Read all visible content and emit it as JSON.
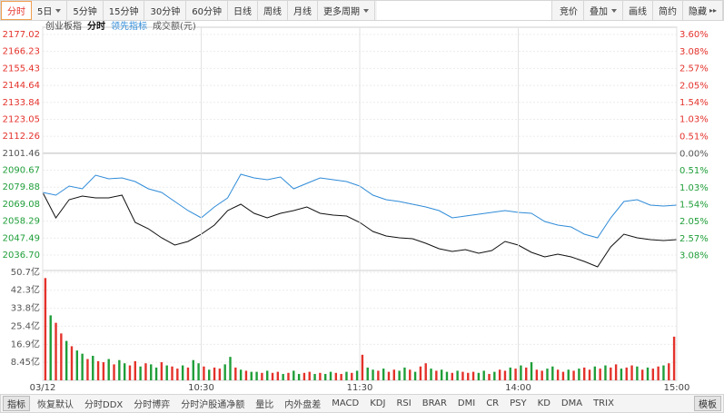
{
  "toolbar": {
    "left": [
      {
        "label": "分时",
        "active": true
      },
      {
        "label": "5日",
        "menu": true
      },
      {
        "label": "5分钟"
      },
      {
        "label": "15分钟"
      },
      {
        "label": "30分钟"
      },
      {
        "label": "60分钟"
      },
      {
        "label": "日线"
      },
      {
        "label": "周线"
      },
      {
        "label": "月线"
      },
      {
        "label": "更多周期",
        "menu": true
      }
    ],
    "right": [
      {
        "label": "竞价"
      },
      {
        "label": "叠加",
        "menu": true
      },
      {
        "label": "画线"
      },
      {
        "label": "简约"
      },
      {
        "label": "隐藏",
        "hide": true
      }
    ]
  },
  "bottom_bar": {
    "label": "指标",
    "tabs": [
      "恢复默认",
      "分时DDX",
      "分时博弈",
      "分时沪股通净额",
      "量比",
      "内外盘差",
      "MACD",
      "KDJ",
      "RSI",
      "BRAR",
      "DMI",
      "CR",
      "PSY",
      "KD",
      "DMA",
      "TRIX"
    ],
    "end": "模板"
  },
  "chart_data": [
    {
      "type": "line",
      "title": "创业板指",
      "series": [
        {
          "name": "分时",
          "color": "#111111",
          "values": [
            2076.53,
            2060.36,
            2071.91,
            2074.22,
            2073.07,
            2073.07,
            2074.8,
            2057.48,
            2053.43,
            2047.66,
            2043.04,
            2045.35,
            2049.97,
            2055.74,
            2064.98,
            2069.03,
            2063.25,
            2060.36,
            2063.25,
            2064.98,
            2067.29,
            2063.25,
            2062.1,
            2061.52,
            2057.48,
            2051.7,
            2048.81,
            2047.66,
            2047.08,
            2044.19,
            2040.73,
            2039.0,
            2040.15,
            2037.84,
            2039.57,
            2045.35,
            2043.04,
            2038.42,
            2035.53,
            2037.26,
            2035.53,
            2032.64,
            2029.18,
            2041.88,
            2049.97,
            2047.66,
            2046.5,
            2045.93,
            2046.5
          ]
        },
        {
          "name": "领先指标",
          "color": "#2f8bd8",
          "values": [
            2076.53,
            2074.8,
            2080.58,
            2078.84,
            2087.51,
            2085.2,
            2085.77,
            2083.46,
            2078.84,
            2076.53,
            2070.76,
            2064.98,
            2060.36,
            2067.29,
            2073.07,
            2088.08,
            2085.77,
            2084.62,
            2086.35,
            2078.84,
            2082.31,
            2085.77,
            2084.62,
            2083.46,
            2080.58,
            2074.8,
            2071.91,
            2070.76,
            2069.03,
            2067.29,
            2064.98,
            2060.36,
            2061.52,
            2062.67,
            2063.83,
            2064.98,
            2063.83,
            2063.25,
            2058.05,
            2055.74,
            2054.59,
            2049.97,
            2047.66,
            2060.36,
            2070.76,
            2071.91,
            2068.45,
            2067.87,
            2068.45
          ]
        }
      ],
      "xlim": [
        0,
        240
      ],
      "ylim": [
        2026.88,
        2181.64
      ],
      "yticks": [
        2177.02,
        2166.23,
        2155.43,
        2144.64,
        2133.84,
        2123.05,
        2112.26,
        2101.46,
        2090.67,
        2079.88,
        2069.08,
        2058.29,
        2047.49,
        {
          "value": 2036.7,
          "label": "2036.70"
        }
      ],
      "y2lim": [
        -3.53,
        3.82
      ],
      "y2ticks": [
        {
          "value": 3.6,
          "label": "3.60%"
        },
        {
          "value": 3.08,
          "label": "3.08%"
        },
        {
          "value": 2.57,
          "label": "2.57%"
        },
        {
          "value": 2.05,
          "label": "2.05%"
        },
        {
          "value": 1.54,
          "label": "1.54%"
        },
        {
          "value": 1.03,
          "label": "1.03%"
        },
        {
          "value": 0.51,
          "label": "0.51%"
        },
        {
          "value": 0,
          "label": "0.00%"
        },
        {
          "value": -0.51,
          "label": "0.51%"
        },
        {
          "value": -1.03,
          "label": "1.03%"
        },
        {
          "value": -1.54,
          "label": "1.54%"
        },
        {
          "value": -2.05,
          "label": "2.05%"
        },
        {
          "value": -2.57,
          "label": "2.57%"
        },
        {
          "value": -3.08,
          "label": "3.08%"
        }
      ],
      "colors": {
        "up": "#e4322b",
        "down": "#1f9e39",
        "flat": "#555555"
      },
      "grid": true
    },
    {
      "type": "bar",
      "title": "成交额(元)",
      "values": [
        48.0,
        30.5,
        27.0,
        22.0,
        18.5,
        16.0,
        14.0,
        12.5,
        10.0,
        11.5,
        9.0,
        8.5,
        10.0,
        7.5,
        9.5,
        8.0,
        7.0,
        9.0,
        6.5,
        8.0,
        7.5,
        6.0,
        8.5,
        7.0,
        6.5,
        5.5,
        7.0,
        6.0,
        9.5,
        8.0,
        6.5,
        5.0,
        6.0,
        5.5,
        7.5,
        11.0,
        6.0,
        5.0,
        4.5,
        4.0,
        4.0,
        3.5,
        4.5,
        3.5,
        4.0,
        3.0,
        3.5,
        4.5,
        3.0,
        3.5,
        4.0,
        3.0,
        3.5,
        3.0,
        4.0,
        3.5,
        3.0,
        4.0,
        3.5,
        4.5,
        12.0,
        6.0,
        5.0,
        4.5,
        5.5,
        4.0,
        5.0,
        4.5,
        6.0,
        5.0,
        4.0,
        6.5,
        8.0,
        5.5,
        4.5,
        5.0,
        4.0,
        3.5,
        4.5,
        4.0,
        3.5,
        4.0,
        3.5,
        4.5,
        3.0,
        4.0,
        5.0,
        4.5,
        6.0,
        5.5,
        7.0,
        6.0,
        8.5,
        5.0,
        4.5,
        5.5,
        6.5,
        5.0,
        4.0,
        5.0,
        4.5,
        5.5,
        6.0,
        5.0,
        6.5,
        5.5,
        7.0,
        6.0,
        7.5,
        5.5,
        6.0,
        7.0,
        6.5,
        5.0,
        6.0,
        5.5,
        6.5,
        7.0,
        8.0,
        20.5
      ],
      "up": [
        1,
        0,
        1,
        1,
        0,
        1,
        0,
        0,
        1,
        0,
        1,
        1,
        0,
        1,
        0,
        0,
        1,
        1,
        0,
        1,
        0,
        0,
        1,
        0,
        1,
        1,
        0,
        1,
        0,
        0,
        1,
        0,
        1,
        1,
        0,
        0,
        1,
        0,
        1,
        0,
        0,
        1,
        0,
        1,
        1,
        0,
        1,
        0,
        0,
        1,
        1,
        0,
        1,
        0,
        0,
        1,
        1,
        0,
        1,
        0,
        1,
        0,
        0,
        1,
        0,
        1,
        1,
        0,
        0,
        1,
        0,
        1,
        1,
        0,
        1,
        0,
        0,
        1,
        0,
        1,
        1,
        1,
        0,
        0,
        1,
        0,
        1,
        1,
        0,
        1,
        0,
        1,
        0,
        1,
        1,
        0,
        0,
        1,
        1,
        0,
        1,
        0,
        1,
        1,
        0,
        1,
        0,
        1,
        1,
        0,
        1,
        1,
        0,
        1,
        0,
        1,
        1,
        0,
        1,
        1
      ],
      "colors": {
        "up": "#e4322b",
        "down": "#1f9e39"
      },
      "xlim": [
        0,
        240
      ],
      "xticks": [
        {
          "value": 0,
          "label": "03/12"
        },
        {
          "value": 60,
          "label": "10:30"
        },
        {
          "value": 120,
          "label": "11:30"
        },
        {
          "value": 180,
          "label": "14:00"
        },
        {
          "value": 240,
          "label": "15:00"
        }
      ],
      "ylim": [
        0,
        50.7
      ],
      "yticks": [
        {
          "value": 50.7,
          "label": "50.7亿"
        },
        {
          "value": 42.3,
          "label": "42.3亿"
        },
        {
          "value": 33.8,
          "label": "33.8亿"
        },
        {
          "value": 25.4,
          "label": "25.4亿"
        },
        {
          "value": 16.9,
          "label": "16.9亿"
        },
        {
          "value": 8.45,
          "label": "8.45亿"
        }
      ],
      "grid": true
    }
  ]
}
